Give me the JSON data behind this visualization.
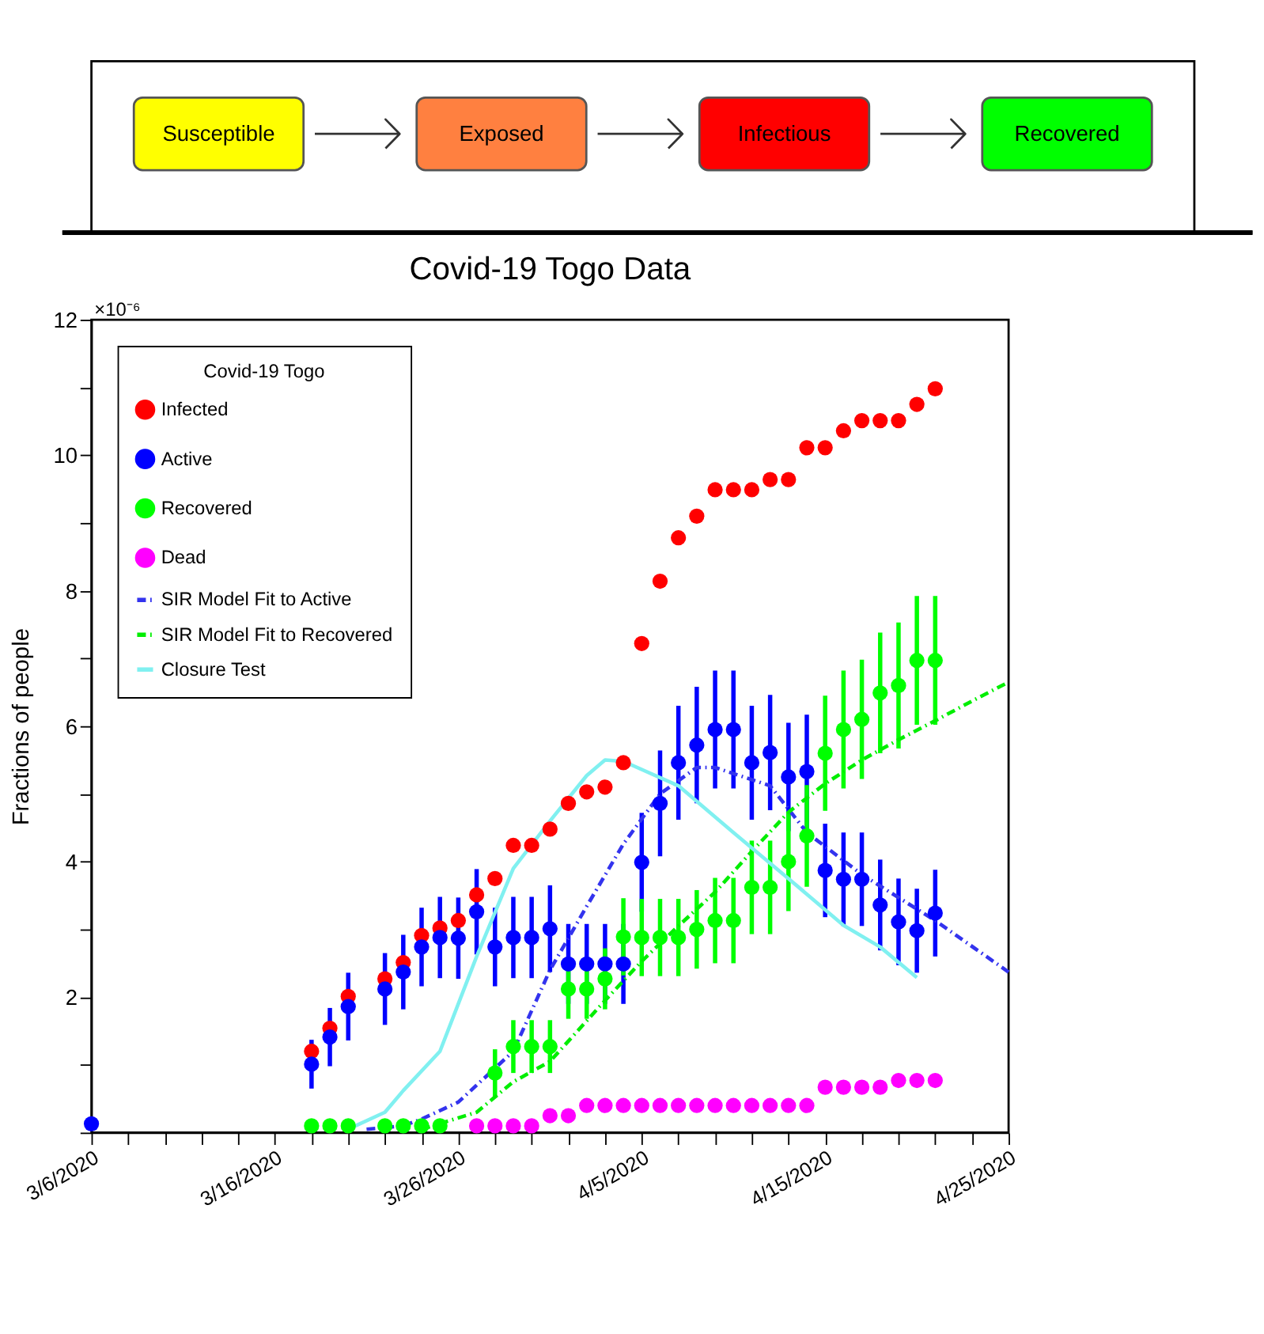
{
  "chart_data": [
    {
      "type": "other",
      "categories": [
        "Susceptible",
        "Exposed",
        "Infectious",
        "Recovered"
      ],
      "colors": [
        "#ffff00",
        "#ff8040",
        "#ff0000",
        "#00ff00"
      ]
    },
    {
      "type": "scatter",
      "title": "Covid-19 Togo Data",
      "ylabel": "Fractions of people",
      "legend_title": "Covid-19 Togo",
      "legend": "top left",
      "grid": false,
      "annotations": [
        "×10⁻⁶"
      ],
      "xlim": [
        "2020-03-06",
        "2020-04-25"
      ],
      "ylim": [
        0,
        12
      ],
      "xticks": [
        {
          "value": "2020-03-06",
          "label": "3/6/2020"
        },
        {
          "value": "2020-03-08",
          "label": null
        },
        {
          "value": "2020-03-10",
          "label": null
        },
        {
          "value": "2020-03-12",
          "label": null
        },
        {
          "value": "2020-03-14",
          "label": null
        },
        {
          "value": "2020-03-16",
          "label": "3/16/2020"
        },
        {
          "value": "2020-03-18",
          "label": null
        },
        {
          "value": "2020-03-20",
          "label": null
        },
        {
          "value": "2020-03-22",
          "label": null
        },
        {
          "value": "2020-03-24",
          "label": null
        },
        {
          "value": "2020-03-26",
          "label": "3/26/2020"
        },
        {
          "value": "2020-03-28",
          "label": null
        },
        {
          "value": "2020-03-30",
          "label": null
        },
        {
          "value": "2020-04-01",
          "label": null
        },
        {
          "value": "2020-04-03",
          "label": null
        },
        {
          "value": "2020-04-05",
          "label": "4/5/2020"
        },
        {
          "value": "2020-04-07",
          "label": null
        },
        {
          "value": "2020-04-09",
          "label": null
        },
        {
          "value": "2020-04-11",
          "label": null
        },
        {
          "value": "2020-04-13",
          "label": null
        },
        {
          "value": "2020-04-15",
          "label": "4/15/2020"
        },
        {
          "value": "2020-04-17",
          "label": null
        },
        {
          "value": "2020-04-19",
          "label": null
        },
        {
          "value": "2020-04-21",
          "label": null
        },
        {
          "value": "2020-04-23",
          "label": null
        },
        {
          "value": "2020-04-25",
          "label": "4/25/2020"
        }
      ],
      "yticks": [
        {
          "value": 0,
          "label": null
        },
        {
          "value": 1,
          "label": null
        },
        2,
        {
          "value": 3,
          "label": null
        },
        4,
        {
          "value": 5,
          "label": null
        },
        6,
        {
          "value": 7,
          "label": null
        },
        8,
        {
          "value": 9,
          "label": null
        },
        10,
        {
          "value": 11,
          "label": null
        },
        12
      ],
      "series": [
        {
          "name": "Infected",
          "type": "scatter",
          "marker": "circle",
          "color": "#ff0000",
          "x": [
            "2020-03-18",
            "2020-03-19",
            "2020-03-20",
            "2020-03-22",
            "2020-03-23",
            "2020-03-24",
            "2020-03-25",
            "2020-03-26",
            "2020-03-27",
            "2020-03-28",
            "2020-03-29",
            "2020-03-30",
            "2020-03-31",
            "2020-04-01",
            "2020-04-02",
            "2020-04-03",
            "2020-04-04",
            "2020-04-05",
            "2020-04-06",
            "2020-04-07",
            "2020-04-08",
            "2020-04-09",
            "2020-04-10",
            "2020-04-11",
            "2020-04-12",
            "2020-04-13",
            "2020-04-14",
            "2020-04-15",
            "2020-04-16",
            "2020-04-17",
            "2020-04-18",
            "2020-04-19",
            "2020-04-20",
            "2020-04-21"
          ],
          "values": [
            1.2,
            1.54,
            2.01,
            2.27,
            2.51,
            2.91,
            3.02,
            3.13,
            3.51,
            3.75,
            4.24,
            4.24,
            4.48,
            4.86,
            5.03,
            5.1,
            5.46,
            7.22,
            8.14,
            8.78,
            9.1,
            9.49,
            9.49,
            9.49,
            9.64,
            9.64,
            10.11,
            10.11,
            10.36,
            10.51,
            10.51,
            10.51,
            10.75,
            10.98
          ]
        },
        {
          "name": "Active",
          "type": "scatter",
          "marker": "circle",
          "color": "#0000ff",
          "x": [
            "2020-03-06",
            "2020-03-18",
            "2020-03-19",
            "2020-03-20",
            "2020-03-22",
            "2020-03-23",
            "2020-03-24",
            "2020-03-25",
            "2020-03-26",
            "2020-03-27",
            "2020-03-28",
            "2020-03-29",
            "2020-03-30",
            "2020-03-31",
            "2020-04-01",
            "2020-04-02",
            "2020-04-03",
            "2020-04-04",
            "2020-04-05",
            "2020-04-06",
            "2020-04-07",
            "2020-04-08",
            "2020-04-09",
            "2020-04-10",
            "2020-04-11",
            "2020-04-12",
            "2020-04-13",
            "2020-04-14",
            "2020-04-15",
            "2020-04-16",
            "2020-04-17",
            "2020-04-18",
            "2020-04-19",
            "2020-04-20",
            "2020-04-21"
          ],
          "values": [
            0.13,
            1.01,
            1.41,
            1.86,
            2.12,
            2.37,
            2.74,
            2.88,
            2.87,
            3.26,
            2.74,
            2.88,
            2.88,
            3.01,
            2.49,
            2.49,
            2.49,
            2.49,
            3.99,
            4.86,
            5.46,
            5.72,
            5.95,
            5.95,
            5.46,
            5.61,
            5.25,
            5.33,
            3.87,
            3.74,
            3.74,
            3.36,
            3.11,
            2.98,
            3.24
          ],
          "errors": [
            null,
            0.36,
            0.43,
            0.5,
            0.53,
            0.55,
            0.58,
            0.6,
            0.6,
            0.63,
            0.58,
            0.6,
            0.6,
            0.64,
            0.59,
            0.59,
            0.59,
            0.59,
            0.73,
            0.78,
            0.84,
            0.86,
            0.87,
            0.87,
            0.84,
            0.85,
            0.8,
            0.84,
            0.69,
            0.69,
            0.69,
            0.67,
            0.64,
            0.62,
            0.64
          ]
        },
        {
          "name": "Recovered",
          "type": "scatter",
          "marker": "circle",
          "color": "#00ff00",
          "x": [
            "2020-03-18",
            "2020-03-19",
            "2020-03-20",
            "2020-03-22",
            "2020-03-23",
            "2020-03-24",
            "2020-03-25",
            "2020-03-26",
            "2020-03-27",
            "2020-03-28",
            "2020-03-29",
            "2020-03-30",
            "2020-03-31",
            "2020-04-01",
            "2020-04-02",
            "2020-04-03",
            "2020-04-04",
            "2020-04-05",
            "2020-04-06",
            "2020-04-07",
            "2020-04-08",
            "2020-04-09",
            "2020-04-10",
            "2020-04-11",
            "2020-04-12",
            "2020-04-13",
            "2020-04-14",
            "2020-04-15",
            "2020-04-16",
            "2020-04-17",
            "2020-04-18",
            "2020-04-19",
            "2020-04-20",
            "2020-04-21"
          ],
          "values": [
            0.1,
            0.1,
            0.1,
            0.1,
            0.1,
            0.1,
            0.1,
            null,
            null,
            0.88,
            1.27,
            1.27,
            1.27,
            2.12,
            2.12,
            2.27,
            2.89,
            2.88,
            2.88,
            2.88,
            3.0,
            3.13,
            3.13,
            3.62,
            3.62,
            4.0,
            4.38,
            5.6,
            5.95,
            6.1,
            6.49,
            6.6,
            6.97,
            6.97
          ],
          "errors": [
            null,
            null,
            null,
            null,
            null,
            null,
            null,
            null,
            null,
            0.35,
            0.39,
            0.39,
            0.39,
            0.44,
            0.44,
            0.45,
            0.57,
            0.57,
            0.57,
            0.57,
            0.58,
            0.63,
            0.63,
            0.69,
            0.69,
            0.73,
            0.75,
            0.85,
            0.87,
            0.88,
            0.89,
            0.93,
            0.95,
            0.95
          ]
        },
        {
          "name": "Dead",
          "type": "scatter",
          "marker": "circle",
          "color": "#ff00ff",
          "x": [
            "2020-03-27",
            "2020-03-28",
            "2020-03-29",
            "2020-03-30",
            "2020-03-31",
            "2020-04-01",
            "2020-04-02",
            "2020-04-03",
            "2020-04-04",
            "2020-04-05",
            "2020-04-06",
            "2020-04-07",
            "2020-04-08",
            "2020-04-09",
            "2020-04-10",
            "2020-04-11",
            "2020-04-12",
            "2020-04-13",
            "2020-04-14",
            "2020-04-15",
            "2020-04-16",
            "2020-04-17",
            "2020-04-18",
            "2020-04-19",
            "2020-04-20",
            "2020-04-21"
          ],
          "values": [
            0.1,
            0.1,
            0.1,
            0.1,
            0.25,
            0.25,
            0.4,
            0.4,
            0.4,
            0.4,
            0.4,
            0.4,
            0.4,
            0.4,
            0.4,
            0.4,
            0.4,
            0.4,
            0.4,
            0.67,
            0.67,
            0.67,
            0.67,
            0.77,
            0.77,
            0.77
          ]
        },
        {
          "name": "SIR Model Fit to Active",
          "type": "line",
          "line_style": "dashed",
          "color": "#3333ee",
          "x": [
            "2020-03-21",
            "2020-03-23",
            "2020-03-24",
            "2020-03-26",
            "2020-03-29",
            "2020-03-31",
            "2020-04-02",
            "2020-04-04",
            "2020-04-06",
            "2020-04-08",
            "2020-04-09",
            "2020-04-12",
            "2020-04-14",
            "2020-04-17",
            "2020-04-21",
            "2020-04-25"
          ],
          "values": [
            0.05,
            0.1,
            0.2,
            0.45,
            1.2,
            2.4,
            3.34,
            4.26,
            5.0,
            5.39,
            5.39,
            5.12,
            4.43,
            3.81,
            3.13,
            2.37
          ]
        },
        {
          "name": "SIR Model Fit to Recovered",
          "type": "line",
          "line_style": "dashed",
          "color": "#00ee00",
          "x": [
            "2020-03-24",
            "2020-03-27",
            "2020-03-29",
            "2020-03-31",
            "2020-04-01",
            "2020-04-03",
            "2020-04-05",
            "2020-04-07",
            "2020-04-09",
            "2020-04-11",
            "2020-04-13",
            "2020-04-15",
            "2020-04-17",
            "2020-04-19",
            "2020-04-21",
            "2020-04-23",
            "2020-04-25"
          ],
          "values": [
            0.05,
            0.3,
            0.75,
            1.05,
            1.35,
            1.95,
            2.53,
            3.05,
            3.55,
            4.15,
            4.73,
            5.15,
            5.5,
            5.8,
            6.08,
            6.37,
            6.65
          ]
        },
        {
          "name": "Closure Test",
          "type": "line",
          "line_style": "solid",
          "color": "#80f0f0",
          "x": [
            "2020-03-20",
            "2020-03-22",
            "2020-03-23",
            "2020-03-25",
            "2020-03-27",
            "2020-03-29",
            "2020-03-31",
            "2020-04-02",
            "2020-04-03",
            "2020-04-04",
            "2020-04-07",
            "2020-04-10",
            "2020-04-13",
            "2020-04-16",
            "2020-04-18",
            "2020-04-20"
          ],
          "values": [
            0.05,
            0.3,
            0.62,
            1.2,
            2.6,
            3.9,
            4.6,
            5.27,
            5.5,
            5.48,
            5.12,
            4.43,
            3.75,
            3.06,
            2.74,
            2.29
          ]
        }
      ]
    }
  ]
}
